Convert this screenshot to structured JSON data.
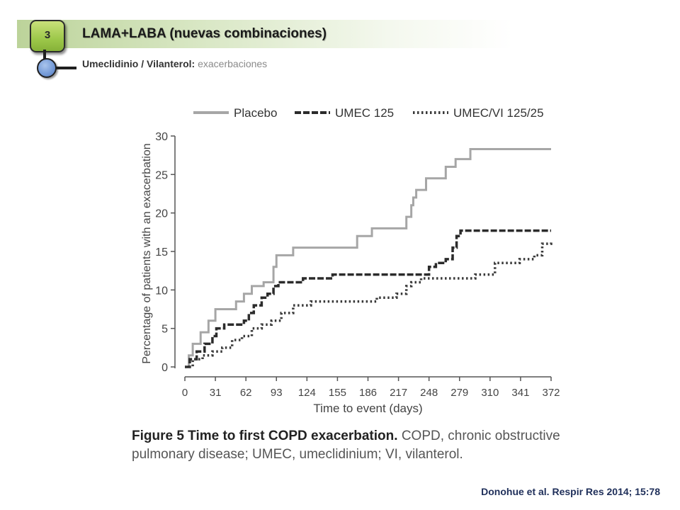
{
  "slide": {
    "number": "3",
    "title": "LAMA+LABA (nuevas combinaciones)",
    "subtitle_bold": "Umeclidinio / Vilanterol:",
    "subtitle_light": "exacerbaciones"
  },
  "caption": {
    "bold": "Figure 5 Time to first COPD exacerbation.",
    "text": "COPD, chronic obstructive pulmonary disease; UMEC, umeclidinium; VI, vilanterol."
  },
  "citation": "Donohue et al. Respir Res 2014; 15:78",
  "chart_data": {
    "type": "line",
    "step": true,
    "xlabel": "Time to event (days)",
    "ylabel": "Percentage of patients with an exacerbation",
    "xlim": [
      0,
      372
    ],
    "ylim": [
      0,
      30
    ],
    "xticks": [
      0,
      31,
      62,
      93,
      124,
      155,
      186,
      217,
      248,
      279,
      310,
      341,
      372
    ],
    "yticks": [
      0,
      5,
      10,
      15,
      20,
      25,
      30
    ],
    "legend_position": "top",
    "series": [
      {
        "name": "Placebo",
        "color": "#a6a6a6",
        "dash": "solid",
        "x": [
          0,
          4,
          8,
          16,
          24,
          31,
          48,
          52,
          60,
          68,
          70,
          80,
          90,
          93,
          110,
          120,
          150,
          175,
          190,
          210,
          225,
          230,
          232,
          235,
          245,
          265,
          275,
          290,
          372
        ],
        "y": [
          0,
          1.5,
          3,
          4.5,
          6,
          7.5,
          7.5,
          8.5,
          9.5,
          10.5,
          10.5,
          11,
          13,
          14.5,
          15.5,
          15.5,
          15.5,
          17,
          18,
          18,
          19.5,
          21,
          22,
          23,
          24.5,
          26,
          27,
          28.3,
          28.3
        ]
      },
      {
        "name": "UMEC 125",
        "color": "#2b2b2b",
        "dash": "dashed",
        "x": [
          0,
          5,
          12,
          20,
          28,
          32,
          40,
          55,
          60,
          65,
          70,
          78,
          84,
          90,
          95,
          100,
          120,
          150,
          170,
          200,
          220,
          248,
          255,
          265,
          272,
          276,
          280,
          372
        ],
        "y": [
          0,
          1,
          2,
          3,
          4,
          5,
          5.5,
          5.5,
          6,
          7,
          8,
          9,
          9.5,
          10.5,
          11,
          11,
          11.5,
          12,
          12,
          12,
          12,
          13,
          13.5,
          14,
          15.5,
          17,
          17.7,
          17.7
        ]
      },
      {
        "name": "UMEC/VI 125/25",
        "color": "#3a3a3a",
        "dash": "dotted",
        "x": [
          0,
          8,
          18,
          28,
          38,
          48,
          58,
          68,
          78,
          88,
          98,
          110,
          128,
          150,
          170,
          195,
          215,
          225,
          230,
          240,
          260,
          295,
          315,
          325,
          340,
          355,
          363,
          372
        ],
        "y": [
          0,
          1,
          1.5,
          2,
          2.5,
          3.5,
          4,
          5,
          5.5,
          6,
          7,
          8,
          8.5,
          8.5,
          8.5,
          9,
          9.5,
          10.5,
          11,
          11.5,
          11.5,
          12,
          13.5,
          13.5,
          14,
          14.5,
          16,
          16.2
        ]
      }
    ]
  }
}
